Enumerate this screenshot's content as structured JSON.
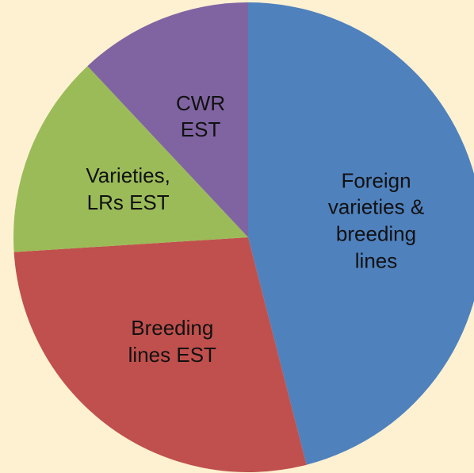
{
  "chart_data": {
    "type": "pie",
    "categories": [
      "Foreign varieties & breeding lines",
      "Breeding lines EST",
      "Varieties, LRs EST",
      "CWR EST"
    ],
    "values": [
      46,
      28,
      14,
      12
    ],
    "colors": [
      "#4f81bd",
      "#c0504d",
      "#9bbb59",
      "#8064a2"
    ]
  }
}
